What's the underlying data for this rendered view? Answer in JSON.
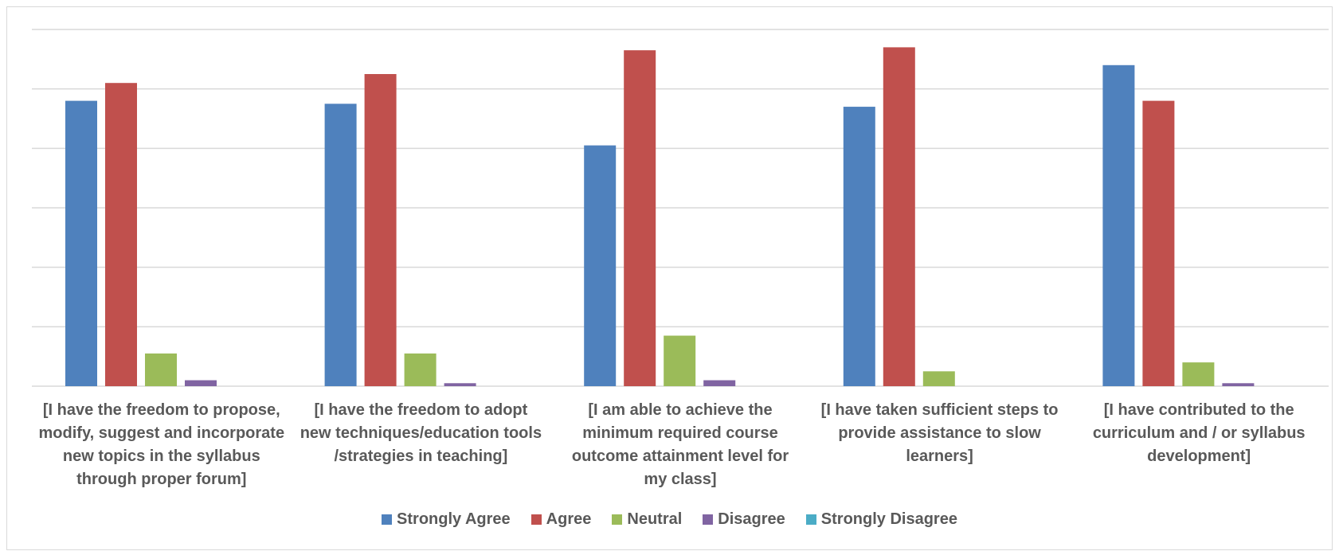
{
  "chart_data": {
    "type": "bar",
    "categories": [
      "[I have the freedom to propose, modify, suggest and incorporate new topics in the syllabus through proper forum]",
      "[I have the freedom to adopt new techniques/education tools /strategies in teaching]",
      "[I am able to achieve the minimum required course outcome attainment level for my class]",
      "[I have taken sufficient steps to provide assistance to slow learners]",
      "[I have contributed to the curriculum and / or syllabus development]"
    ],
    "category_lines": [
      [
        "[I have the freedom to propose,",
        "modify, suggest and incorporate",
        "new topics in the syllabus",
        "through proper forum]"
      ],
      [
        "[I have the freedom to adopt",
        "new techniques/education tools",
        "/strategies in teaching]"
      ],
      [
        "[I am able to achieve the",
        "minimum required course",
        "outcome attainment level for",
        "my class]"
      ],
      [
        "[I have taken sufficient steps to",
        "provide assistance to slow",
        "learners]"
      ],
      [
        "[I have contributed to the",
        "curriculum and / or syllabus",
        "development]"
      ]
    ],
    "series": [
      {
        "name": "Strongly Agree",
        "color": "#4f81bd",
        "values": [
          48,
          47.5,
          40.5,
          47,
          54
        ]
      },
      {
        "name": "Agree",
        "color": "#c0504d",
        "values": [
          51,
          52.5,
          56.5,
          57,
          48
        ]
      },
      {
        "name": "Neutral",
        "color": "#9bbb59",
        "values": [
          5.5,
          5.5,
          8.5,
          2.5,
          4
        ]
      },
      {
        "name": "Disagree",
        "color": "#8064a2",
        "values": [
          1,
          0.5,
          1,
          0,
          0.5
        ]
      },
      {
        "name": "Strongly Disagree",
        "color": "#4bacc6",
        "values": [
          0,
          0,
          0,
          0,
          0
        ]
      }
    ],
    "ylim": [
      0,
      60
    ],
    "y_gridline_step": 10,
    "y_tick_labels_visible": false,
    "grid": true,
    "legend_position": "bottom"
  }
}
